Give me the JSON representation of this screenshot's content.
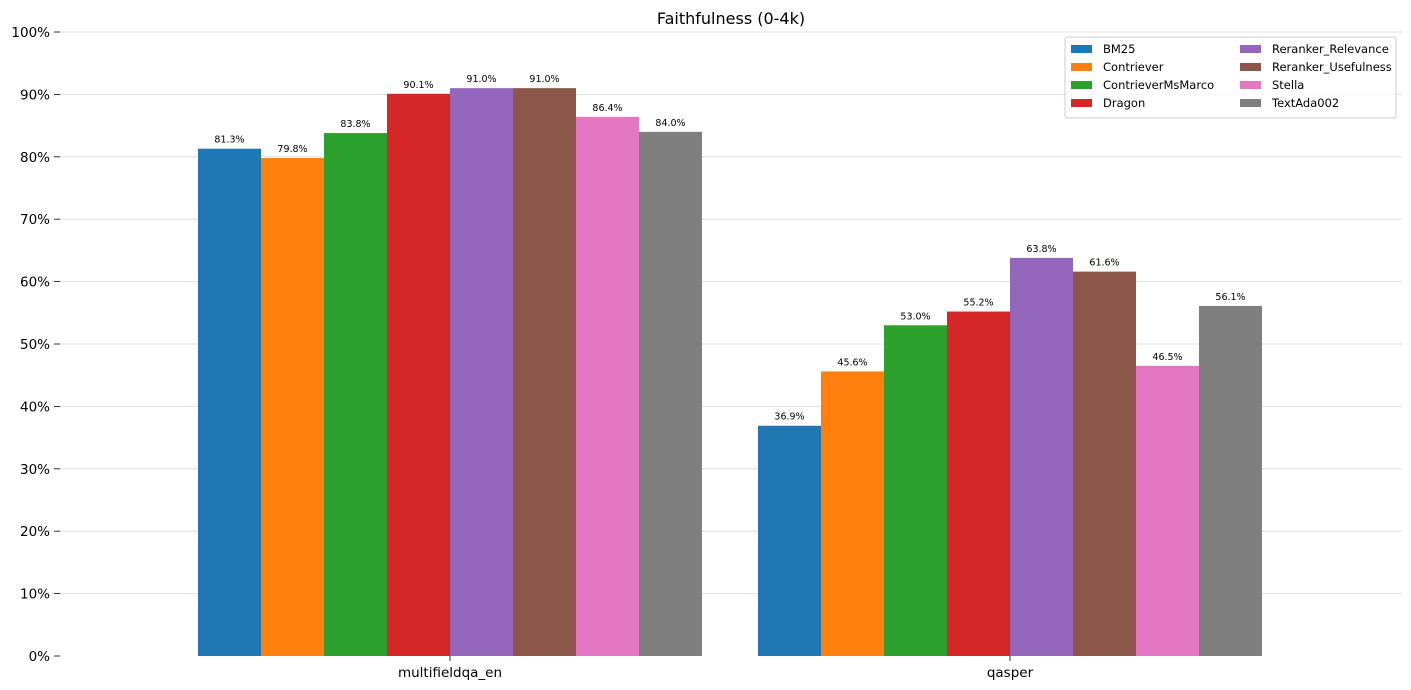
{
  "chart_data": {
    "type": "bar",
    "title": "Faithfulness (0-4k)",
    "xlabel": "",
    "ylabel": "",
    "ylim": [
      0,
      100
    ],
    "y_ticks": [
      0,
      10,
      20,
      30,
      40,
      50,
      60,
      70,
      80,
      90,
      100
    ],
    "y_tick_labels": [
      "0%",
      "10%",
      "20%",
      "30%",
      "40%",
      "50%",
      "60%",
      "70%",
      "80%",
      "90%",
      "100%"
    ],
    "categories": [
      "multifieldqa_en",
      "qasper"
    ],
    "grid": true,
    "legend_position": "top-right",
    "legend_columns": 2,
    "series": [
      {
        "name": "BM25",
        "color": "#1f77b4",
        "values": [
          81.3,
          36.9
        ],
        "labels": [
          "81.3%",
          "36.9%"
        ]
      },
      {
        "name": "Contriever",
        "color": "#ff7f0e",
        "values": [
          79.8,
          45.6
        ],
        "labels": [
          "79.8%",
          "45.6%"
        ]
      },
      {
        "name": "ContrieverMsMarco",
        "color": "#2ca02c",
        "values": [
          83.8,
          53.0
        ],
        "labels": [
          "83.8%",
          "53.0%"
        ]
      },
      {
        "name": "Dragon",
        "color": "#d62728",
        "values": [
          90.1,
          55.2
        ],
        "labels": [
          "90.1%",
          "55.2%"
        ]
      },
      {
        "name": "Reranker_Relevance",
        "color": "#9467bd",
        "values": [
          91.0,
          63.8
        ],
        "labels": [
          "91.0%",
          "63.8%"
        ]
      },
      {
        "name": "Reranker_Usefulness",
        "color": "#8c564b",
        "values": [
          91.0,
          61.6
        ],
        "labels": [
          "91.0%",
          "61.6%"
        ]
      },
      {
        "name": "Stella",
        "color": "#e377c2",
        "values": [
          86.4,
          46.5
        ],
        "labels": [
          "86.4%",
          "46.5%"
        ]
      },
      {
        "name": "TextAda002",
        "color": "#7f7f7f",
        "values": [
          84.0,
          56.1
        ],
        "labels": [
          "84.0%",
          "56.1%"
        ]
      }
    ]
  }
}
